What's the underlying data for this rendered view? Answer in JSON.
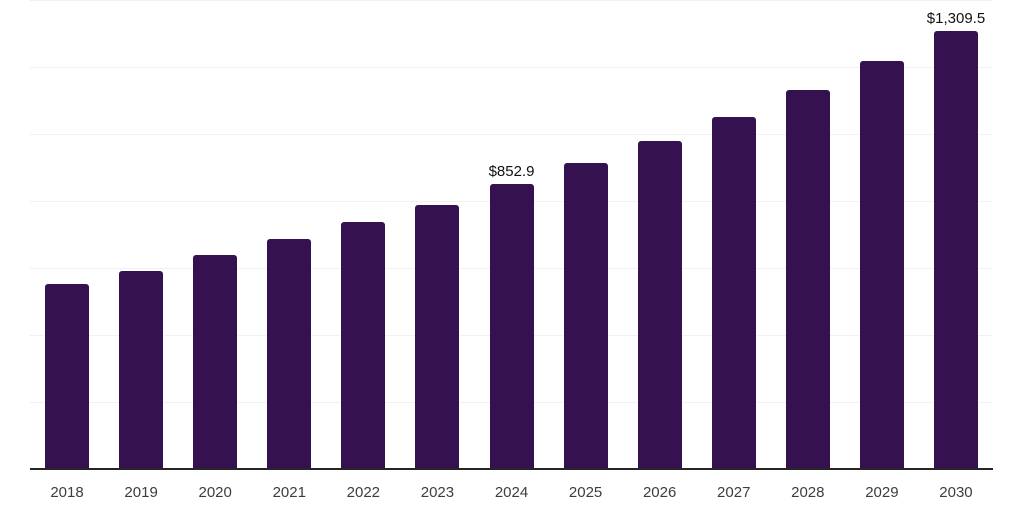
{
  "chart_data": {
    "type": "bar",
    "title": "",
    "xlabel": "",
    "ylabel": "",
    "categories": [
      "2018",
      "2019",
      "2020",
      "2021",
      "2022",
      "2023",
      "2024",
      "2025",
      "2026",
      "2027",
      "2028",
      "2029",
      "2030"
    ],
    "values": [
      555,
      595,
      641,
      689,
      740,
      791,
      852.9,
      915,
      981,
      1055,
      1135,
      1220,
      1309.5
    ],
    "value_labels": [
      "",
      "",
      "",
      "",
      "",
      "",
      "$852.9",
      "",
      "",
      "",
      "",
      "",
      "$1,309.5"
    ],
    "labeled_points": [
      {
        "category": "2024",
        "label": "$852.9",
        "value": 852.9
      },
      {
        "category": "2030",
        "label": "$1,309.5",
        "value": 1309.5
      }
    ],
    "ylim": [
      0,
      1400
    ],
    "gridline_step": 200,
    "grid": "horizontal-only",
    "legend": "none",
    "y_axis_ticks_visible": false,
    "colors": {
      "bar": "#35124f",
      "gridline": "#f1f1f3",
      "axis_line": "#262626",
      "tick_label": "#3d3d3d",
      "data_label": "#111111",
      "background": "#ffffff"
    }
  }
}
